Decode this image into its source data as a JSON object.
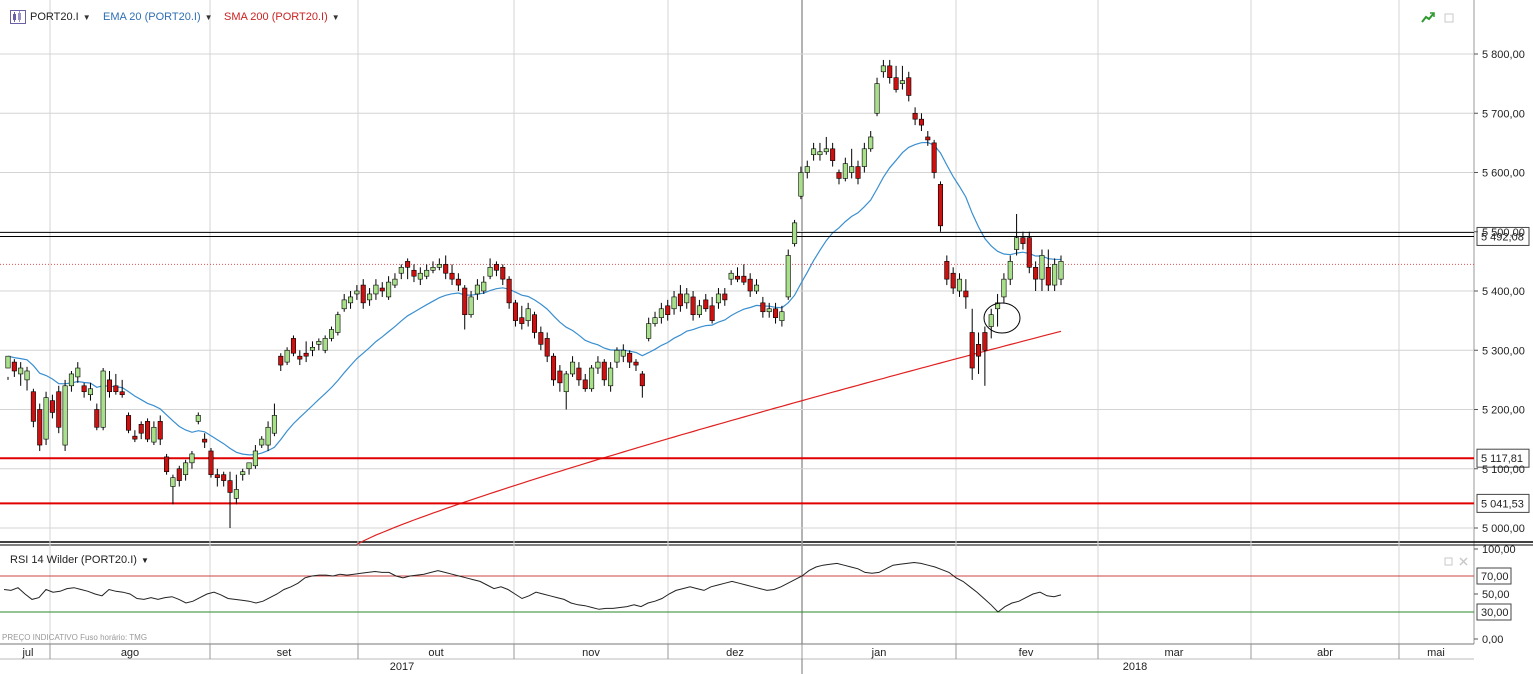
{
  "header": {
    "symbol": "PORT20.I",
    "indicator1": "EMA 20 (PORT20.I)",
    "indicator2": "SMA 200 (PORT20.I)"
  },
  "rsi_panel": {
    "title": "RSI 14 Wilder (PORT20.I)"
  },
  "footer_note": "PREÇO INDICATIVO   Fuso horário: TMG",
  "colors": {
    "up_candle": "#a8e08a",
    "down_candle": "#cc1111",
    "ema": "#3a8fd0",
    "sma": "#e02020",
    "support": "#e00000",
    "grid": "#d4d4d4",
    "rsi_line": "#222222",
    "rsi_overbought": "#cc4444",
    "rsi_oversold": "#2a8a2a"
  },
  "icons": [
    "trend-icon",
    "maximize-icon",
    "close-icon",
    "dropdown-caret-icon"
  ],
  "chart_data": [
    {
      "type": "candlestick",
      "symbol": "PORT20.I",
      "ylim": [
        4970,
        5870
      ],
      "yticks": [
        "5 000,00",
        "5 100,00",
        "5 200,00",
        "5 300,00",
        "5 400,00",
        "5 500,00",
        "5 600,00",
        "5 700,00",
        "5 800,00"
      ],
      "ytick_values": [
        5000,
        5100,
        5200,
        5300,
        5400,
        5500,
        5600,
        5700,
        5800
      ],
      "month_labels": [
        "jul",
        "ago",
        "set",
        "out",
        "nov",
        "dez",
        "jan",
        "fev",
        "mar",
        "abr",
        "mai"
      ],
      "year_labels": [
        "2017",
        "2018"
      ],
      "horizontal_levels": [
        {
          "value": 5492.08,
          "label": "5 492,08",
          "style": "black"
        },
        {
          "value": 5117.81,
          "label": "5 117,81",
          "style": "red"
        },
        {
          "value": 5041.53,
          "label": "5 041,53",
          "style": "red"
        },
        {
          "value": 5445,
          "label": "",
          "style": "dotted-red"
        }
      ],
      "candles": [
        [
          5270,
          5290,
          5255,
          5250
        ],
        [
          5280,
          5265,
          5285,
          5255
        ],
        [
          5260,
          5270,
          5280,
          5240
        ],
        [
          5250,
          5265,
          5272,
          5232
        ],
        [
          5230,
          5180,
          5235,
          5170
        ],
        [
          5200,
          5140,
          5210,
          5130
        ],
        [
          5150,
          5220,
          5230,
          5140
        ],
        [
          5215,
          5195,
          5225,
          5185
        ],
        [
          5230,
          5170,
          5240,
          5160
        ],
        [
          5140,
          5240,
          5250,
          5130
        ],
        [
          5240,
          5260,
          5265,
          5230
        ],
        [
          5255,
          5270,
          5280,
          5245
        ],
        [
          5240,
          5230,
          5245,
          5220
        ],
        [
          5225,
          5235,
          5245,
          5215
        ],
        [
          5200,
          5170,
          5210,
          5165
        ],
        [
          5170,
          5265,
          5270,
          5165
        ],
        [
          5250,
          5230,
          5265,
          5220
        ],
        [
          5240,
          5230,
          5260,
          5225
        ],
        [
          5230,
          5225,
          5250,
          5220
        ],
        [
          5190,
          5165,
          5195,
          5160
        ],
        [
          5155,
          5150,
          5165,
          5145
        ],
        [
          5175,
          5160,
          5180,
          5150
        ],
        [
          5180,
          5150,
          5185,
          5145
        ],
        [
          5145,
          5170,
          5180,
          5140
        ],
        [
          5180,
          5150,
          5190,
          5140
        ],
        [
          5120,
          5095,
          5125,
          5090
        ],
        [
          5070,
          5085,
          5090,
          5040
        ],
        [
          5100,
          5080,
          5105,
          5070
        ],
        [
          5090,
          5110,
          5115,
          5080
        ],
        [
          5110,
          5125,
          5130,
          5100
        ],
        [
          5180,
          5190,
          5195,
          5175
        ],
        [
          5150,
          5145,
          5160,
          5135
        ],
        [
          5130,
          5090,
          5135,
          5085
        ],
        [
          5090,
          5085,
          5100,
          5070
        ],
        [
          5090,
          5080,
          5095,
          5070
        ],
        [
          5080,
          5060,
          5095,
          5000
        ],
        [
          5050,
          5065,
          5090,
          5040
        ],
        [
          5090,
          5095,
          5100,
          5080
        ],
        [
          5100,
          5110,
          5110,
          5090
        ],
        [
          5105,
          5130,
          5140,
          5100
        ],
        [
          5140,
          5150,
          5155,
          5135
        ],
        [
          5140,
          5170,
          5180,
          5130
        ],
        [
          5160,
          5190,
          5210,
          5155
        ],
        [
          5290,
          5275,
          5295,
          5265
        ],
        [
          5280,
          5300,
          5305,
          5275
        ],
        [
          5320,
          5295,
          5325,
          5290
        ],
        [
          5290,
          5285,
          5300,
          5275
        ],
        [
          5295,
          5290,
          5315,
          5280
        ],
        [
          5300,
          5305,
          5315,
          5290
        ],
        [
          5310,
          5315,
          5320,
          5300
        ],
        [
          5300,
          5320,
          5325,
          5295
        ],
        [
          5320,
          5335,
          5340,
          5315
        ],
        [
          5330,
          5360,
          5365,
          5325
        ],
        [
          5370,
          5385,
          5395,
          5365
        ],
        [
          5380,
          5390,
          5400,
          5370
        ],
        [
          5395,
          5400,
          5410,
          5385
        ],
        [
          5410,
          5380,
          5420,
          5370
        ],
        [
          5385,
          5395,
          5405,
          5375
        ],
        [
          5395,
          5410,
          5420,
          5385
        ],
        [
          5405,
          5400,
          5415,
          5390
        ],
        [
          5390,
          5415,
          5425,
          5385
        ],
        [
          5410,
          5420,
          5430,
          5405
        ],
        [
          5430,
          5440,
          5445,
          5420
        ],
        [
          5450,
          5440,
          5455,
          5420
        ],
        [
          5435,
          5425,
          5445,
          5415
        ],
        [
          5420,
          5430,
          5440,
          5410
        ],
        [
          5425,
          5435,
          5445,
          5420
        ],
        [
          5435,
          5440,
          5450,
          5430
        ],
        [
          5440,
          5445,
          5455,
          5435
        ],
        [
          5445,
          5430,
          5460,
          5420
        ],
        [
          5430,
          5420,
          5445,
          5410
        ],
        [
          5420,
          5410,
          5430,
          5400
        ],
        [
          5405,
          5360,
          5410,
          5335
        ],
        [
          5360,
          5390,
          5400,
          5355
        ],
        [
          5395,
          5410,
          5420,
          5385
        ],
        [
          5400,
          5415,
          5425,
          5395
        ],
        [
          5425,
          5440,
          5455,
          5420
        ],
        [
          5445,
          5435,
          5450,
          5425
        ],
        [
          5440,
          5420,
          5445,
          5410
        ],
        [
          5420,
          5380,
          5425,
          5370
        ],
        [
          5380,
          5350,
          5385,
          5340
        ],
        [
          5355,
          5345,
          5375,
          5335
        ],
        [
          5350,
          5370,
          5380,
          5340
        ],
        [
          5360,
          5330,
          5365,
          5320
        ],
        [
          5330,
          5310,
          5340,
          5300
        ],
        [
          5320,
          5290,
          5330,
          5280
        ],
        [
          5290,
          5250,
          5295,
          5240
        ],
        [
          5265,
          5245,
          5275,
          5230
        ],
        [
          5230,
          5260,
          5265,
          5200
        ],
        [
          5260,
          5280,
          5290,
          5255
        ],
        [
          5270,
          5250,
          5280,
          5240
        ],
        [
          5250,
          5235,
          5260,
          5230
        ],
        [
          5235,
          5270,
          5275,
          5230
        ],
        [
          5270,
          5280,
          5290,
          5260
        ],
        [
          5280,
          5250,
          5285,
          5240
        ],
        [
          5240,
          5270,
          5280,
          5230
        ],
        [
          5280,
          5300,
          5305,
          5270
        ],
        [
          5290,
          5300,
          5310,
          5280
        ],
        [
          5295,
          5280,
          5300,
          5270
        ],
        [
          5280,
          5275,
          5285,
          5265
        ],
        [
          5260,
          5240,
          5265,
          5220
        ],
        [
          5320,
          5345,
          5355,
          5315
        ],
        [
          5345,
          5355,
          5365,
          5340
        ],
        [
          5355,
          5370,
          5380,
          5345
        ],
        [
          5375,
          5360,
          5385,
          5350
        ],
        [
          5370,
          5390,
          5400,
          5360
        ],
        [
          5395,
          5375,
          5410,
          5365
        ],
        [
          5380,
          5395,
          5405,
          5370
        ],
        [
          5390,
          5360,
          5400,
          5350
        ],
        [
          5360,
          5375,
          5385,
          5355
        ],
        [
          5385,
          5370,
          5395,
          5365
        ],
        [
          5375,
          5350,
          5390,
          5345
        ],
        [
          5380,
          5395,
          5405,
          5370
        ],
        [
          5395,
          5385,
          5405,
          5375
        ],
        [
          5420,
          5430,
          5435,
          5410
        ],
        [
          5425,
          5420,
          5440,
          5415
        ],
        [
          5425,
          5415,
          5445,
          5410
        ],
        [
          5420,
          5400,
          5430,
          5390
        ],
        [
          5400,
          5410,
          5420,
          5395
        ],
        [
          5380,
          5365,
          5390,
          5355
        ],
        [
          5365,
          5370,
          5380,
          5355
        ],
        [
          5370,
          5355,
          5380,
          5345
        ],
        [
          5350,
          5365,
          5375,
          5340
        ],
        [
          5390,
          5460,
          5470,
          5385
        ],
        [
          5480,
          5515,
          5520,
          5475
        ],
        [
          5560,
          5600,
          5610,
          5555
        ],
        [
          5600,
          5610,
          5620,
          5590
        ],
        [
          5630,
          5640,
          5650,
          5620
        ],
        [
          5630,
          5635,
          5650,
          5620
        ],
        [
          5635,
          5640,
          5660,
          5630
        ],
        [
          5640,
          5620,
          5650,
          5610
        ],
        [
          5600,
          5590,
          5605,
          5580
        ],
        [
          5590,
          5615,
          5625,
          5585
        ],
        [
          5600,
          5610,
          5640,
          5590
        ],
        [
          5610,
          5590,
          5620,
          5580
        ],
        [
          5610,
          5640,
          5650,
          5600
        ],
        [
          5640,
          5660,
          5670,
          5635
        ],
        [
          5700,
          5750,
          5760,
          5695
        ],
        [
          5770,
          5780,
          5790,
          5760
        ],
        [
          5780,
          5760,
          5790,
          5750
        ],
        [
          5760,
          5740,
          5780,
          5735
        ],
        [
          5750,
          5755,
          5780,
          5740
        ],
        [
          5760,
          5730,
          5770,
          5720
        ],
        [
          5700,
          5690,
          5710,
          5680
        ],
        [
          5690,
          5680,
          5700,
          5670
        ],
        [
          5660,
          5655,
          5670,
          5645
        ],
        [
          5650,
          5600,
          5655,
          5590
        ],
        [
          5580,
          5510,
          5585,
          5500
        ],
        [
          5450,
          5420,
          5460,
          5410
        ],
        [
          5430,
          5405,
          5440,
          5395
        ],
        [
          5400,
          5420,
          5430,
          5390
        ],
        [
          5400,
          5390,
          5420,
          5370
        ],
        [
          5330,
          5270,
          5370,
          5250
        ],
        [
          5310,
          5290,
          5330,
          5260
        ],
        [
          5330,
          5300,
          5340,
          5240
        ],
        [
          5340,
          5360,
          5370,
          5320
        ],
        [
          5370,
          5380,
          5395,
          5340
        ],
        [
          5390,
          5420,
          5430,
          5380
        ],
        [
          5420,
          5450,
          5460,
          5410
        ],
        [
          5470,
          5490,
          5530,
          5460
        ],
        [
          5490,
          5480,
          5500,
          5470
        ],
        [
          5490,
          5440,
          5500,
          5430
        ],
        [
          5440,
          5420,
          5450,
          5400
        ],
        [
          5420,
          5460,
          5470,
          5400
        ],
        [
          5440,
          5410,
          5470,
          5400
        ],
        [
          5410,
          5445,
          5455,
          5400
        ],
        [
          5420,
          5450,
          5460,
          5410
        ]
      ]
    },
    {
      "type": "line",
      "name": "RSI 14 Wilder (PORT20.I)",
      "ylim": [
        0,
        100
      ],
      "yticks": [
        "0,00",
        "50,00",
        "100,00"
      ],
      "ytick_values": [
        0,
        50,
        100
      ],
      "levels": [
        {
          "value": 70,
          "label": "70,00"
        },
        {
          "value": 30,
          "label": "30,00"
        }
      ],
      "values": [
        55,
        54,
        57,
        50,
        44,
        46,
        55,
        52,
        53,
        56,
        57,
        55,
        53,
        50,
        48,
        55,
        53,
        52,
        50,
        45,
        44,
        46,
        44,
        46,
        47,
        44,
        40,
        42,
        46,
        50,
        52,
        49,
        45,
        44,
        43,
        42,
        40,
        42,
        46,
        50,
        55,
        58,
        62,
        68,
        70,
        71,
        71,
        70,
        72,
        71,
        72,
        73,
        74,
        75,
        74,
        74,
        70,
        68,
        70,
        71,
        72,
        74,
        76,
        74,
        72,
        70,
        68,
        66,
        64,
        60,
        56,
        58,
        55,
        50,
        45,
        48,
        52,
        50,
        48,
        46,
        44,
        40,
        38,
        37,
        35,
        33,
        34,
        34,
        35,
        36,
        38,
        36,
        40,
        42,
        45,
        50,
        54,
        56,
        58,
        56,
        54,
        58,
        60,
        62,
        64,
        62,
        60,
        58,
        56,
        54,
        55,
        58,
        62,
        66,
        70,
        76,
        80,
        82,
        83,
        84,
        82,
        80,
        78,
        74,
        73,
        74,
        78,
        82,
        83,
        84,
        85,
        84,
        82,
        80,
        77,
        74,
        68,
        64,
        58,
        52,
        45,
        38,
        30,
        36,
        40,
        42,
        46,
        50,
        52,
        48,
        47,
        49
      ]
    }
  ]
}
